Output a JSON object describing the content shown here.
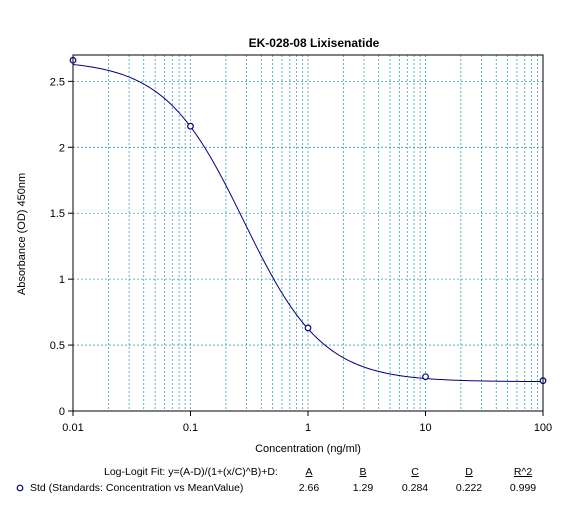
{
  "chart_data": {
    "type": "scatter",
    "title": "EK-028-08 Lixisenatide",
    "xlabel": "Concentration (ng/ml)",
    "ylabel": "Absorbance (OD) 450nm",
    "xscale": "log",
    "xlim": [
      0.01,
      100
    ],
    "ylim": [
      0,
      2.7
    ],
    "x_ticks": [
      "0.01",
      "0.1",
      "1",
      "10",
      "100"
    ],
    "y_ticks": [
      "0",
      "0.5",
      "1",
      "1.5",
      "2",
      "2.5"
    ],
    "grid": true,
    "series": [
      {
        "name": "Std (Standards: Concentration vs MeanValue)",
        "x": [
          0.01,
          0.1,
          1,
          10,
          100
        ],
        "y": [
          2.66,
          2.16,
          0.63,
          0.26,
          0.23
        ],
        "marker": "circle",
        "color": "#000080"
      }
    ],
    "fit": {
      "model": "Log-Logit Fit: y=(A-D)/(1+(x/C)^B)+D:",
      "A": 2.66,
      "B": 1.29,
      "C": 0.284,
      "D": 0.222,
      "R2": 0.999,
      "color": "#000080"
    },
    "fit_table": {
      "label": "Log-Logit Fit: y=(A-D)/(1+(x/C)^B)+D:",
      "headers": [
        "A",
        "B",
        "C",
        "D",
        "R^2"
      ],
      "row_label": "Std (Standards: Concentration vs MeanValue)",
      "row_values": [
        "2.66",
        "1.29",
        "0.284",
        "0.222",
        "0.999"
      ]
    },
    "colors": {
      "grid": "#3a9fb8",
      "series": "#000080"
    }
  }
}
